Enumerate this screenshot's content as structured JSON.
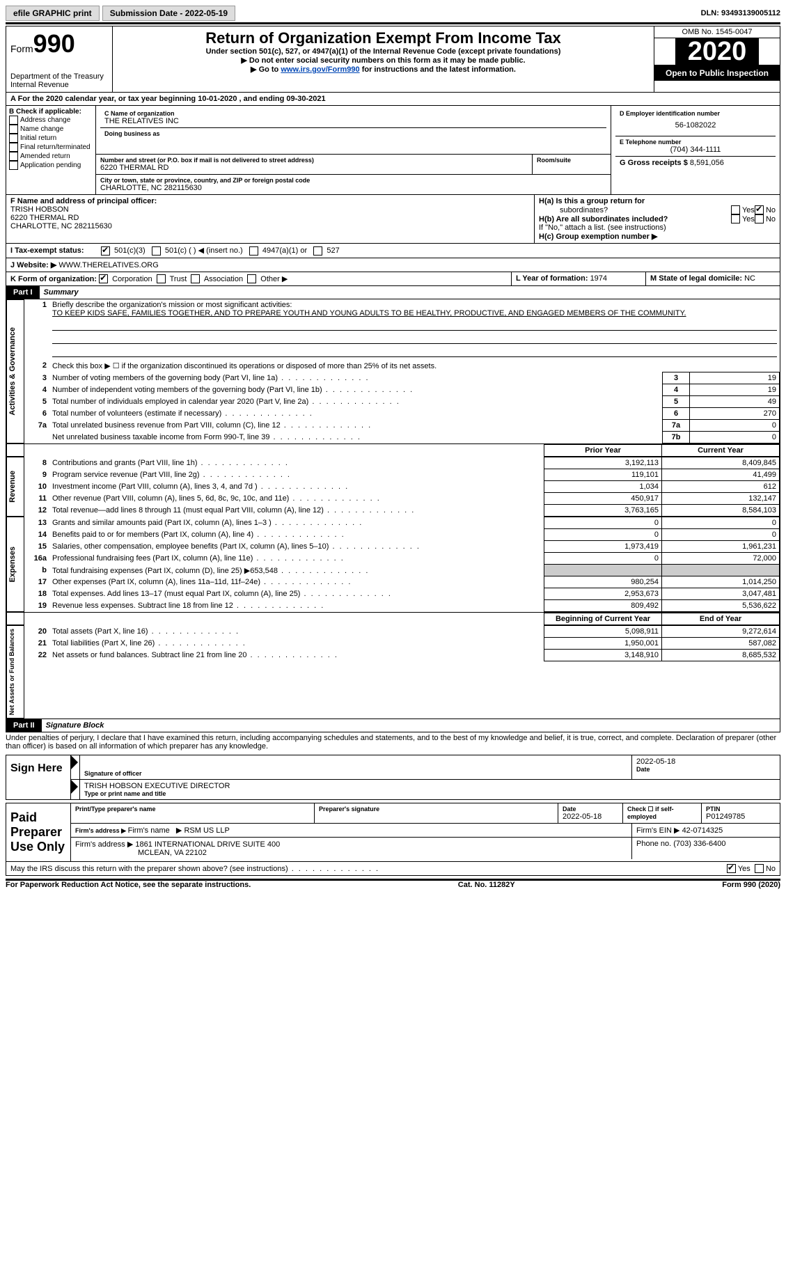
{
  "topbar": {
    "efile": "efile GRAPHIC print",
    "subdate_label": "Submission Date - ",
    "subdate": "2022-05-19",
    "dln_label": "DLN: ",
    "dln": "93493139005112"
  },
  "header": {
    "form_word": "Form",
    "form_no": "990",
    "dept": "Department of the Treasury",
    "irs": "Internal Revenue",
    "title": "Return of Organization Exempt From Income Tax",
    "subtitle": "Under section 501(c), 527, or 4947(a)(1) of the Internal Revenue Code (except private foundations)",
    "note1": "▶ Do not enter social security numbers on this form as it may be made public.",
    "note2_pre": "▶ Go to ",
    "note2_link": "www.irs.gov/Form990",
    "note2_post": " for instructions and the latest information.",
    "omb": "OMB No. 1545-0047",
    "year": "2020",
    "open": "Open to Public Inspection"
  },
  "lineA": {
    "pre": "A For the 2020 calendar year, or tax year beginning ",
    "begin": "10-01-2020",
    "mid": " , and ending ",
    "end": "09-30-2021"
  },
  "boxB": {
    "title": "B Check if applicable:",
    "items": [
      "Address change",
      "Name change",
      "Initial return",
      "Final return/terminated",
      "Amended return",
      "Application pending"
    ]
  },
  "boxC": {
    "label": "C Name of organization",
    "name": "THE RELATIVES INC",
    "dba": "Doing business as",
    "addr_label": "Number and street (or P.O. box if mail is not delivered to street address)",
    "room": "Room/suite",
    "addr": "6220 THERMAL RD",
    "city_label": "City or town, state or province, country, and ZIP or foreign postal code",
    "city": "CHARLOTTE, NC  282115630"
  },
  "boxD": {
    "label": "D Employer identification number",
    "ein": "56-1082022"
  },
  "boxE": {
    "label": "E Telephone number",
    "phone": "(704) 344-1111"
  },
  "boxG": {
    "label": "G Gross receipts $ ",
    "val": "8,591,056"
  },
  "boxF": {
    "label": "F Name and address of principal officer:",
    "name": "TRISH HOBSON",
    "addr1": "6220 THERMAL RD",
    "addr2": "CHARLOTTE, NC  282115630"
  },
  "boxH": {
    "a": "H(a)  Is this a group return for",
    "a2": "subordinates?",
    "b": "H(b)  Are all subordinates included?",
    "note": "If \"No,\" attach a list. (see instructions)",
    "c": "H(c)  Group exemption number ▶",
    "yes": "Yes",
    "no": "No"
  },
  "lineI": {
    "label": "I  Tax-exempt status:",
    "opts": [
      "501(c)(3)",
      "501(c) (  ) ◀ (insert no.)",
      "4947(a)(1) or",
      "527"
    ]
  },
  "lineJ": {
    "label": "J  Website: ▶",
    "val": " WWW.THERELATIVES.ORG"
  },
  "lineK": {
    "label": "K Form of organization:",
    "opts": [
      "Corporation",
      "Trust",
      "Association",
      "Other ▶"
    ]
  },
  "lineL": {
    "label": "L Year of formation: ",
    "val": "1974"
  },
  "lineM": {
    "label": "M State of legal domicile: ",
    "val": "NC"
  },
  "part1": {
    "num": "Part I",
    "title": "Summary"
  },
  "summary": {
    "q1": "Briefly describe the organization's mission or most significant activities:",
    "mission": "TO KEEP KIDS SAFE, FAMILIES TOGETHER, AND TO PREPARE YOUTH AND YOUNG ADULTS TO BE HEALTHY, PRODUCTIVE, AND ENGAGED MEMBERS OF THE COMMUNITY.",
    "q2": "Check this box ▶ ☐ if the organization discontinued its operations or disposed of more than 25% of its net assets.",
    "q3": "Number of voting members of the governing body (Part VI, line 1a)",
    "q4": "Number of independent voting members of the governing body (Part VI, line 1b)",
    "q5": "Total number of individuals employed in calendar year 2020 (Part V, line 2a)",
    "q6": "Total number of volunteers (estimate if necessary)",
    "q7a": "Total unrelated business revenue from Part VIII, column (C), line 12",
    "q7b": "Net unrelated business taxable income from Form 990-T, line 39",
    "v3": "19",
    "v4": "19",
    "v5": "49",
    "v6": "270",
    "v7a": "0",
    "v7b": "0",
    "hdr_prior": "Prior Year",
    "hdr_curr": "Current Year",
    "rows": [
      {
        "n": "8",
        "t": "Contributions and grants (Part VIII, line 1h)",
        "p": "3,192,113",
        "c": "8,409,845"
      },
      {
        "n": "9",
        "t": "Program service revenue (Part VIII, line 2g)",
        "p": "119,101",
        "c": "41,499"
      },
      {
        "n": "10",
        "t": "Investment income (Part VIII, column (A), lines 3, 4, and 7d )",
        "p": "1,034",
        "c": "612"
      },
      {
        "n": "11",
        "t": "Other revenue (Part VIII, column (A), lines 5, 6d, 8c, 9c, 10c, and 11e)",
        "p": "450,917",
        "c": "132,147"
      },
      {
        "n": "12",
        "t": "Total revenue—add lines 8 through 11 (must equal Part VIII, column (A), line 12)",
        "p": "3,763,165",
        "c": "8,584,103"
      },
      {
        "n": "13",
        "t": "Grants and similar amounts paid (Part IX, column (A), lines 1–3 )",
        "p": "0",
        "c": "0"
      },
      {
        "n": "14",
        "t": "Benefits paid to or for members (Part IX, column (A), line 4)",
        "p": "0",
        "c": "0"
      },
      {
        "n": "15",
        "t": "Salaries, other compensation, employee benefits (Part IX, column (A), lines 5–10)",
        "p": "1,973,419",
        "c": "1,961,231"
      },
      {
        "n": "16a",
        "t": "Professional fundraising fees (Part IX, column (A), line 11e)",
        "p": "0",
        "c": "72,000"
      },
      {
        "n": "b",
        "t": "Total fundraising expenses (Part IX, column (D), line 25) ▶653,548",
        "p": "",
        "c": "",
        "gray": true
      },
      {
        "n": "17",
        "t": "Other expenses (Part IX, column (A), lines 11a–11d, 11f–24e)",
        "p": "980,254",
        "c": "1,014,250"
      },
      {
        "n": "18",
        "t": "Total expenses. Add lines 13–17 (must equal Part IX, column (A), line 25)",
        "p": "2,953,673",
        "c": "3,047,481"
      },
      {
        "n": "19",
        "t": "Revenue less expenses. Subtract line 18 from line 12",
        "p": "809,492",
        "c": "5,536,622"
      }
    ],
    "hdr_beg": "Beginning of Current Year",
    "hdr_end": "End of Year",
    "rows2": [
      {
        "n": "20",
        "t": "Total assets (Part X, line 16)",
        "p": "5,098,911",
        "c": "9,272,614"
      },
      {
        "n": "21",
        "t": "Total liabilities (Part X, line 26)",
        "p": "1,950,001",
        "c": "587,082"
      },
      {
        "n": "22",
        "t": "Net assets or fund balances. Subtract line 21 from line 20",
        "p": "3,148,910",
        "c": "8,685,532"
      }
    ],
    "side1": "Activities & Governance",
    "side2": "Revenue",
    "side3": "Expenses",
    "side4": "Net Assets or Fund Balances"
  },
  "part2": {
    "num": "Part II",
    "title": "Signature Block"
  },
  "penalty": "Under penalties of perjury, I declare that I have examined this return, including accompanying schedules and statements, and to the best of my knowledge and belief, it is true, correct, and complete. Declaration of preparer (other than officer) is based on all information of which preparer has any knowledge.",
  "sign": {
    "here": "Sign Here",
    "sig_label": "Signature of officer",
    "date": "2022-05-18",
    "date_label": "Date",
    "printed": "TRISH HOBSON  EXECUTIVE DIRECTOR",
    "printed_label": "Type or print name and title"
  },
  "paid": {
    "title": "Paid Preparer Use Only",
    "h1": "Print/Type preparer's name",
    "h2": "Preparer's signature",
    "h3": "Date",
    "h3v": "2022-05-18",
    "h4": "Check ☐ if self-employed",
    "h5": "PTIN",
    "h5v": "P01249785",
    "firm_label": "Firm's name   ▶ ",
    "firm": "RSM US LLP",
    "ein_label": "Firm's EIN ▶ ",
    "ein": "42-0714325",
    "addr_label": "Firm's address ▶ ",
    "addr1": "1861 INTERNATIONAL DRIVE SUITE 400",
    "addr2": "MCLEAN, VA  22102",
    "phone_label": "Phone no. ",
    "phone": "(703) 336-6400"
  },
  "lastq": "May the IRS discuss this return with the preparer shown above? (see instructions)",
  "footer": {
    "left": "For Paperwork Reduction Act Notice, see the separate instructions.",
    "mid": "Cat. No. 11282Y",
    "right": "Form 990 (2020)"
  }
}
